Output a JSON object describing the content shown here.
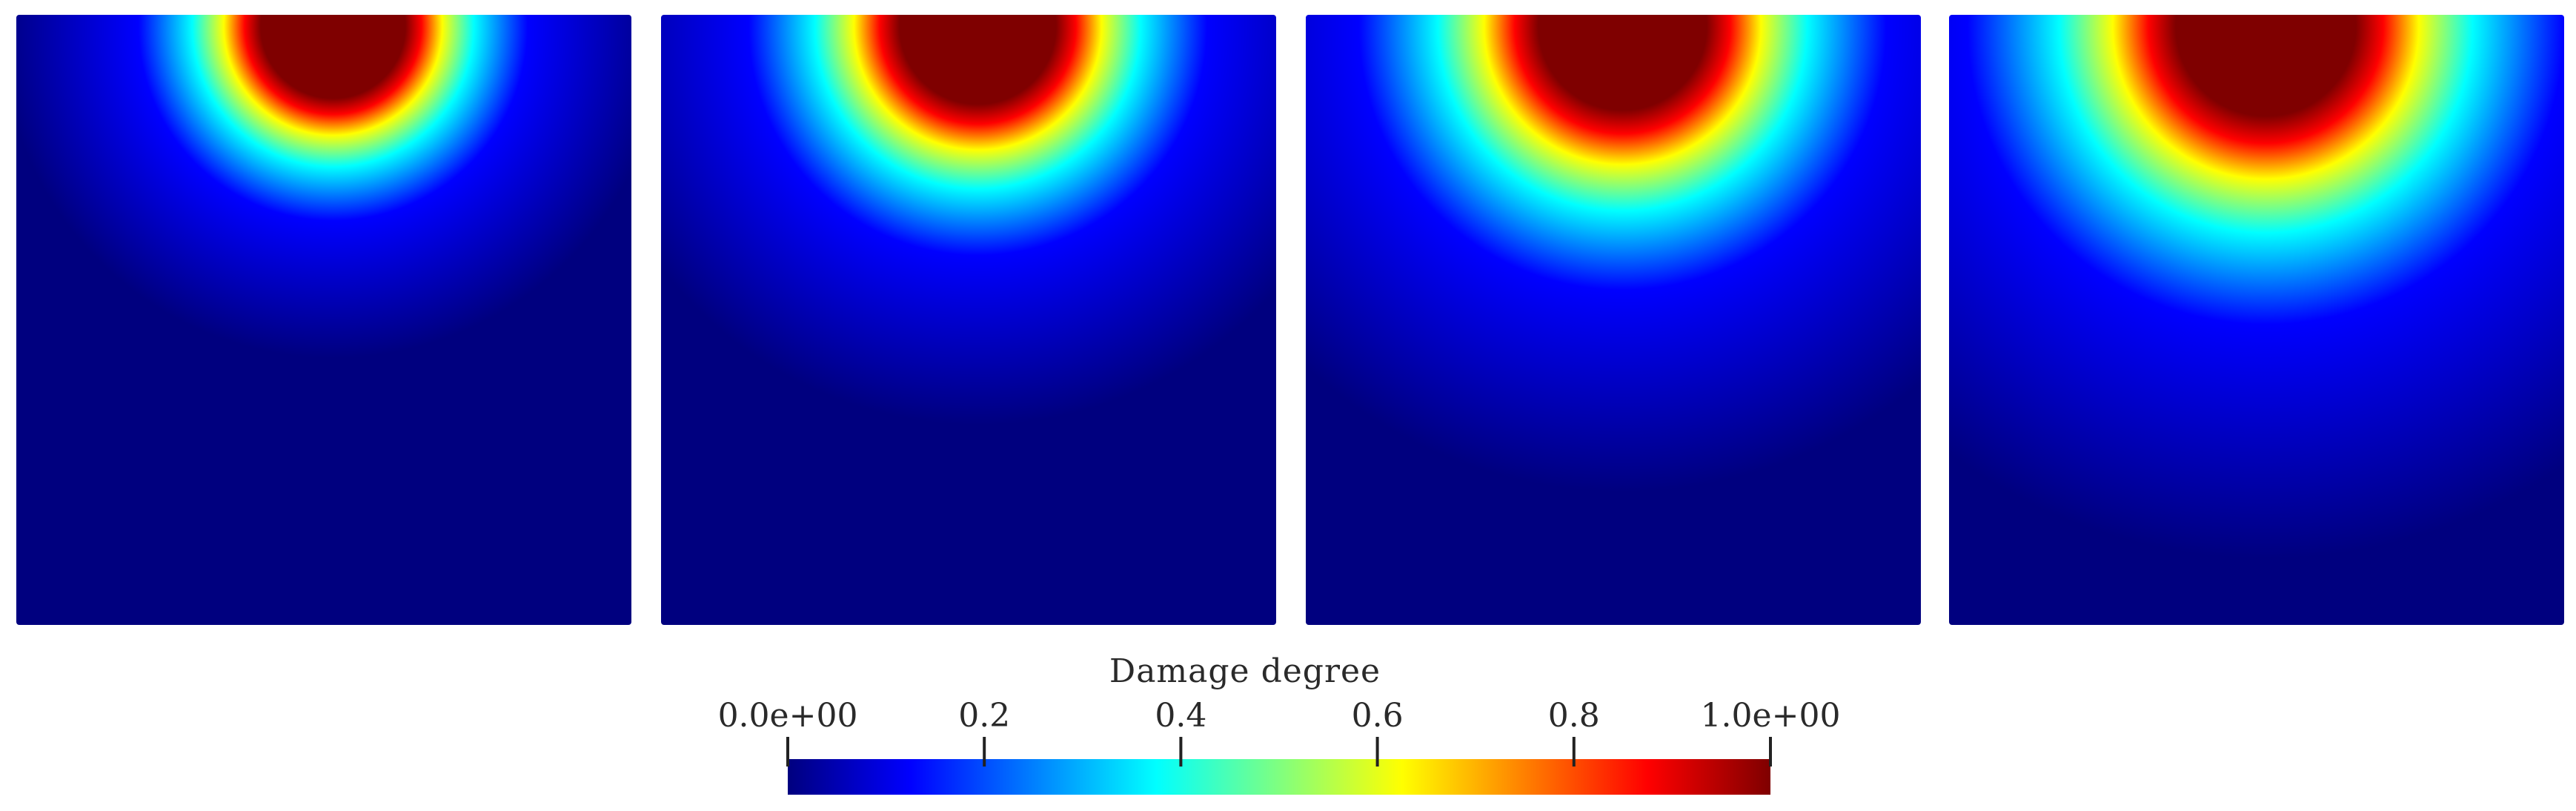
{
  "colorbar": {
    "title": "Damage degree",
    "min": 0.0,
    "max": 1.0,
    "ticks": [
      {
        "value": 0.0,
        "label": "0.0e+00"
      },
      {
        "value": 0.2,
        "label": "0.2"
      },
      {
        "value": 0.4,
        "label": "0.4"
      },
      {
        "value": 0.6,
        "label": "0.6"
      },
      {
        "value": 0.8,
        "label": "0.8"
      },
      {
        "value": 1.0,
        "label": "1.0e+00"
      }
    ],
    "colormap": "jet",
    "stops": [
      "#00007f",
      "#0000ff",
      "#00ffff",
      "#ffff00",
      "#ff0000",
      "#7f0000"
    ]
  },
  "panels": [
    {
      "damage_zone_extent": 0.22
    },
    {
      "damage_zone_extent": 0.32
    },
    {
      "damage_zone_extent": 0.42
    },
    {
      "damage_zone_extent": 0.52
    }
  ]
}
